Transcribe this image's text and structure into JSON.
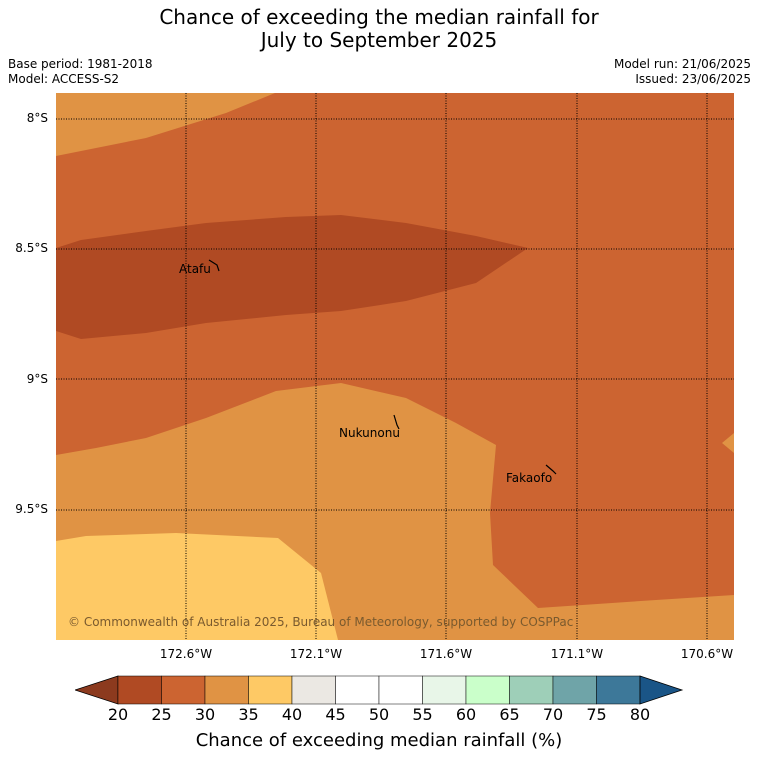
{
  "title": {
    "line1": "Chance of exceeding the median rainfall for",
    "line2": "July to September 2025"
  },
  "meta": {
    "base_period": "Base period: 1981-2018",
    "model": "Model: ACCESS-S2",
    "model_run": "Model run: 21/06/2025",
    "issued": "Issued: 23/06/2025"
  },
  "map": {
    "lat_labels": [
      "8°S",
      "8.5°S",
      "9°S",
      "9.5°S"
    ],
    "lon_labels": [
      "172.6°W",
      "172.1°W",
      "171.6°W",
      "171.1°W",
      "170.6°W"
    ],
    "places": [
      "Atafu",
      "Nukunonu",
      "Fakaofo"
    ],
    "copyright": "© Commonwealth of Australia 2025, Bureau of Meteorology, supported by COSPPac",
    "colors": {
      "band_20_25": "#b04a23",
      "band_25_30": "#cc6431",
      "band_30_35": "#e09344",
      "band_35_40": "#fec965"
    }
  },
  "colorbar": {
    "ticks": [
      "20",
      "25",
      "30",
      "35",
      "40",
      "45",
      "50",
      "55",
      "60",
      "65",
      "70",
      "75",
      "80"
    ],
    "colors": [
      "#b04a23",
      "#cc6431",
      "#e09344",
      "#fec965",
      "#ebe8e3",
      "#ffffff",
      "#ffffff",
      "#e8f6e8",
      "#caffca",
      "#9ecfb8",
      "#6fa4a8",
      "#3d7899"
    ],
    "low_arrow_color": "#8c3a1e",
    "high_arrow_color": "#1a5587",
    "title": "Chance of exceeding median rainfall (%)"
  }
}
